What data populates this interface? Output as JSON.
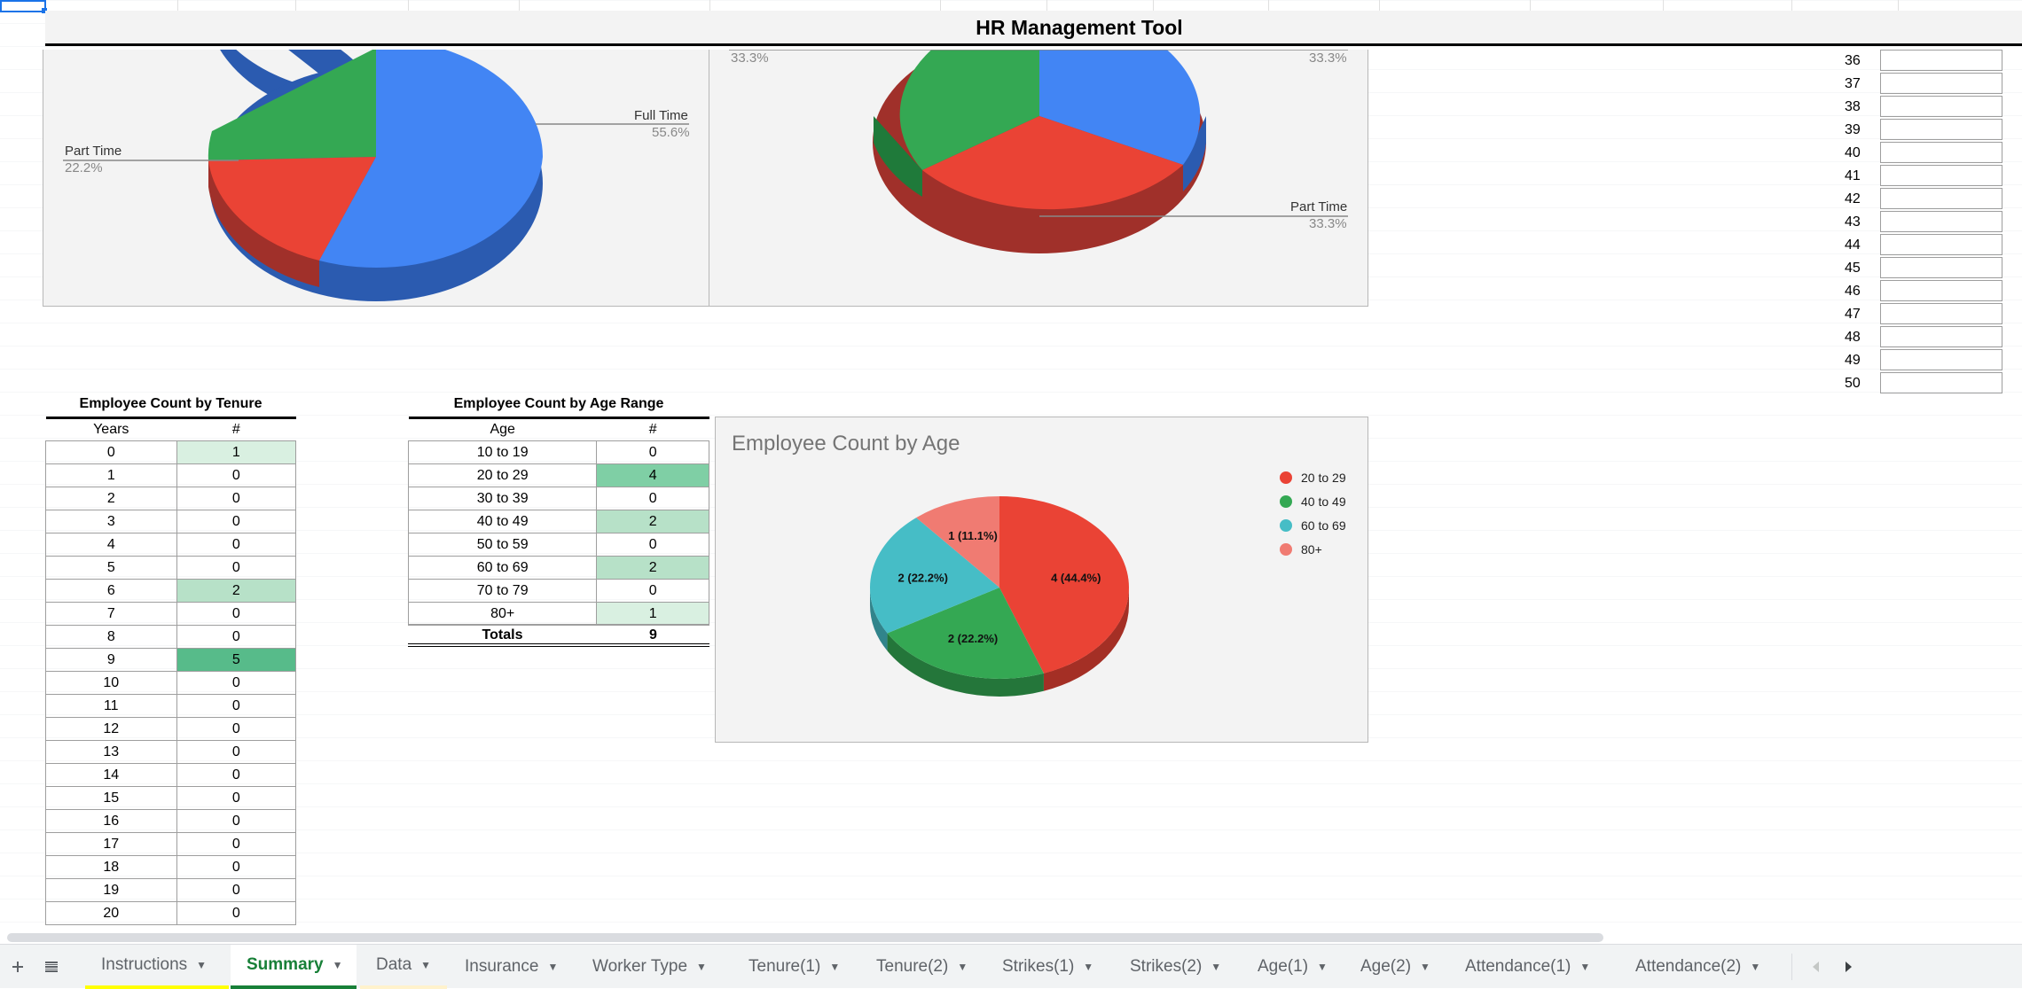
{
  "title": "HR Management Tool",
  "chart_top_left": {
    "labels": [
      {
        "name": "Full Time",
        "pct": "55.6%"
      },
      {
        "name": "Part Time",
        "pct": "22.2%"
      }
    ],
    "colors": [
      "#4285f4",
      "#ea4335",
      "#34a853"
    ]
  },
  "chart_top_right": {
    "top_left_pct": "33.3%",
    "top_right_pct": "33.3%",
    "label": "Part Time",
    "label_pct": "33.3%",
    "colors": [
      "#4285f4",
      "#ea4335",
      "#34a853"
    ]
  },
  "row_numbers": [
    "36",
    "37",
    "38",
    "39",
    "40",
    "41",
    "42",
    "43",
    "44",
    "45",
    "46",
    "47",
    "48",
    "49",
    "50"
  ],
  "tenure_table": {
    "title": "Employee Count by Tenure",
    "headers": [
      "Years",
      "#"
    ],
    "rows": [
      {
        "years": "0",
        "count": "1",
        "shade": "g1"
      },
      {
        "years": "1",
        "count": "0",
        "shade": ""
      },
      {
        "years": "2",
        "count": "0",
        "shade": ""
      },
      {
        "years": "3",
        "count": "0",
        "shade": ""
      },
      {
        "years": "4",
        "count": "0",
        "shade": ""
      },
      {
        "years": "5",
        "count": "0",
        "shade": ""
      },
      {
        "years": "6",
        "count": "2",
        "shade": "g2"
      },
      {
        "years": "7",
        "count": "0",
        "shade": ""
      },
      {
        "years": "8",
        "count": "0",
        "shade": ""
      },
      {
        "years": "9",
        "count": "5",
        "shade": "g4"
      },
      {
        "years": "10",
        "count": "0",
        "shade": ""
      },
      {
        "years": "11",
        "count": "0",
        "shade": ""
      },
      {
        "years": "12",
        "count": "0",
        "shade": ""
      },
      {
        "years": "13",
        "count": "0",
        "shade": ""
      },
      {
        "years": "14",
        "count": "0",
        "shade": ""
      },
      {
        "years": "15",
        "count": "0",
        "shade": ""
      },
      {
        "years": "16",
        "count": "0",
        "shade": ""
      },
      {
        "years": "17",
        "count": "0",
        "shade": ""
      },
      {
        "years": "18",
        "count": "0",
        "shade": ""
      },
      {
        "years": "19",
        "count": "0",
        "shade": ""
      },
      {
        "years": "20",
        "count": "0",
        "shade": ""
      }
    ]
  },
  "age_table": {
    "title": "Employee Count by Age Range",
    "headers": [
      "Age",
      "#"
    ],
    "rows": [
      {
        "age": "10 to 19",
        "count": "0",
        "shade": ""
      },
      {
        "age": "20 to 29",
        "count": "4",
        "shade": "g3"
      },
      {
        "age": "30 to 39",
        "count": "0",
        "shade": ""
      },
      {
        "age": "40 to 49",
        "count": "2",
        "shade": "g2"
      },
      {
        "age": "50 to 59",
        "count": "0",
        "shade": ""
      },
      {
        "age": "60 to 69",
        "count": "2",
        "shade": "g2"
      },
      {
        "age": "70 to 79",
        "count": "0",
        "shade": ""
      },
      {
        "age": "80+",
        "count": "1",
        "shade": "g1"
      }
    ],
    "totals_label": "Totals",
    "totals_value": "9"
  },
  "chart_data": {
    "type": "pie",
    "title": "Employee Count by Age",
    "categories": [
      "20 to 29",
      "40 to 49",
      "60 to 69",
      "80+"
    ],
    "values": [
      4,
      2,
      2,
      1
    ],
    "data_labels": [
      "4 (44.4%)",
      "2 (22.2%)",
      "2 (22.2%)",
      "1 (11.1%)"
    ],
    "colors": [
      "#ea4335",
      "#34a853",
      "#46bdc6",
      "#f07b72"
    ],
    "legend_position": "right"
  },
  "tabs": [
    {
      "label": "Instructions",
      "underline": "yellow"
    },
    {
      "label": "Summary",
      "active": true
    },
    {
      "label": "Data",
      "underline": "lightyellow"
    },
    {
      "label": "Insurance"
    },
    {
      "label": "Worker Type"
    },
    {
      "label": "Tenure(1)"
    },
    {
      "label": "Tenure(2)"
    },
    {
      "label": "Strikes(1)"
    },
    {
      "label": "Strikes(2)"
    },
    {
      "label": "Age(1)"
    },
    {
      "label": "Age(2)"
    },
    {
      "label": "Attendance(1)"
    },
    {
      "label": "Attendance(2)"
    }
  ],
  "icons": {
    "add_sheet": "plus-icon",
    "all_sheets": "menu-icon",
    "scroll_left": "chevron-left-icon",
    "scroll_right": "chevron-right-icon"
  }
}
